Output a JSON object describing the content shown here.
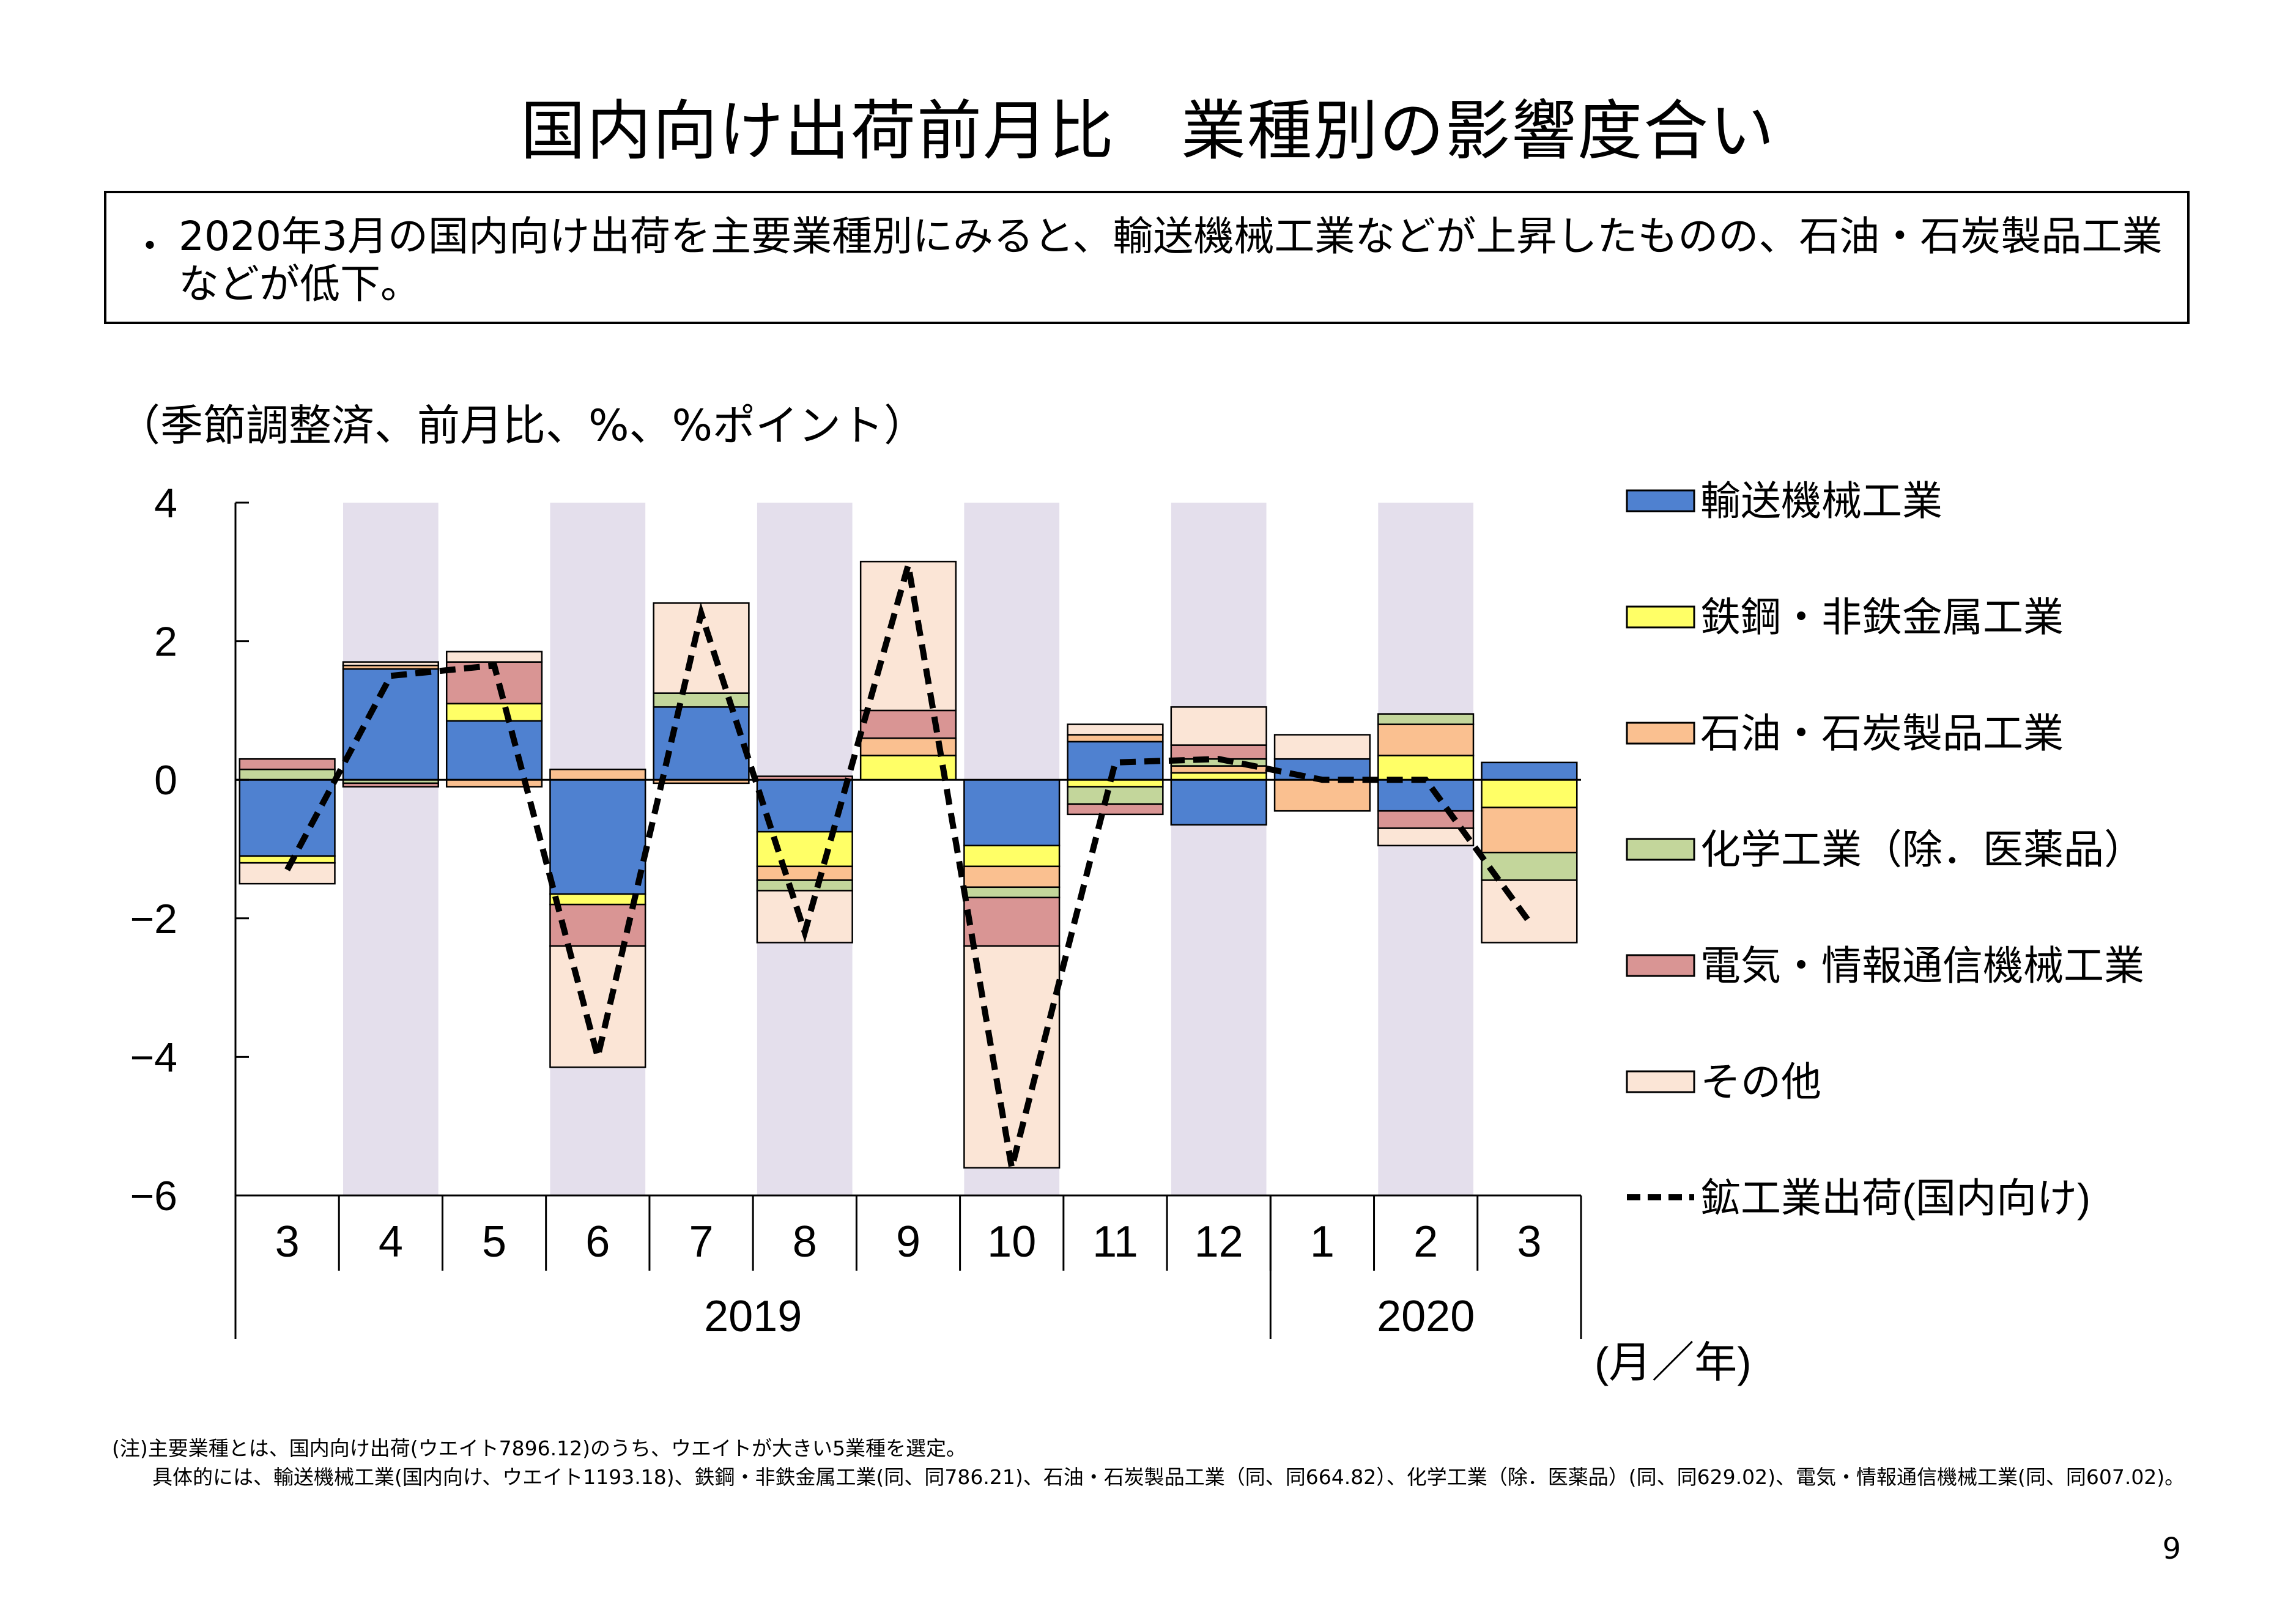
{
  "page": {
    "title": "国内向け出荷前月比　業種別の影響度合い",
    "summary_bullet": "・",
    "summary": "2020年3月の国内向け出荷を主要業種別にみると、輸送機械工業などが上昇したものの、石油・石炭製品工業などが低下。",
    "unit_label": "（季節調整済、前月比、%、%ポイント）",
    "note": "(注)主要業種とは、国内向け出荷(ウエイト7896.12)のうち、ウエイトが大きい5業種を選定。\n　　具体的には、輸送機械工業(国内向け、ウエイト1193.18)、鉄鋼・非鉄金属工業(同、同786.21)、石油・石炭製品工業（同、同664.82）、化学工業（除．医薬品）(同、同629.02)、電気・情報通信機械工業(同、同607.02)。",
    "page_number": "9"
  },
  "chart_data": {
    "type": "bar",
    "stacked": true,
    "categories": [
      "3",
      "4",
      "5",
      "6",
      "7",
      "8",
      "9",
      "10",
      "11",
      "12",
      "1",
      "2",
      "3"
    ],
    "year_groups": [
      {
        "label": "2019",
        "from": 0,
        "to": 9
      },
      {
        "label": "2020",
        "from": 10,
        "to": 12
      }
    ],
    "xlabel_unit": "(月／年)",
    "ylim": [
      -6,
      4
    ],
    "yticks": [
      4,
      2,
      0,
      -2,
      -4,
      -6
    ],
    "ytick_labels": [
      "4",
      "2",
      "0",
      "−2",
      "−4",
      "−6"
    ],
    "shaded_categories": [
      1,
      3,
      5,
      7,
      9,
      11
    ],
    "shade_color": "#e4dfec",
    "series": [
      {
        "name": "輸送機械工業",
        "color": "#4f81d0",
        "values": [
          -1.1,
          1.6,
          0.85,
          -1.65,
          1.05,
          -0.75,
          0.0,
          -0.95,
          0.55,
          -0.65,
          0.3,
          -0.45,
          0.25
        ]
      },
      {
        "name": "鉄鋼・非鉄金属工業",
        "color": "#ffff66",
        "values": [
          -0.1,
          0.0,
          0.25,
          -0.15,
          0.0,
          -0.5,
          0.35,
          -0.3,
          -0.1,
          0.1,
          0.0,
          0.35,
          -0.4
        ]
      },
      {
        "name": "石油・石炭製品工業",
        "color": "#fac090",
        "values": [
          0.0,
          0.05,
          -0.1,
          0.15,
          -0.05,
          -0.2,
          0.25,
          -0.3,
          0.1,
          0.1,
          -0.45,
          0.45,
          -0.65
        ]
      },
      {
        "name": "化学工業（除．医薬品）",
        "color": "#c3d69b",
        "values": [
          0.15,
          -0.05,
          0.0,
          0.0,
          0.2,
          -0.15,
          0.0,
          -0.15,
          -0.25,
          0.1,
          0.0,
          0.15,
          -0.4
        ]
      },
      {
        "name": "電気・情報通信機械工業",
        "color": "#d99594",
        "values": [
          0.15,
          -0.05,
          0.6,
          -0.6,
          0.0,
          0.05,
          0.4,
          -0.7,
          -0.15,
          0.2,
          0.0,
          -0.25,
          0.0
        ]
      },
      {
        "name": "その他",
        "color": "#fbe5d6",
        "values": [
          -0.3,
          0.05,
          0.15,
          -1.75,
          1.3,
          -0.75,
          2.15,
          -3.2,
          0.15,
          0.55,
          0.35,
          -0.25,
          -0.9
        ]
      }
    ],
    "line": {
      "name": "鉱工業出荷(国内向け)",
      "color": "#000000",
      "values": [
        -1.3,
        1.5,
        1.65,
        -4.0,
        2.4,
        -2.2,
        3.1,
        -5.6,
        0.25,
        0.3,
        0.0,
        0.0,
        -2.05
      ]
    }
  }
}
